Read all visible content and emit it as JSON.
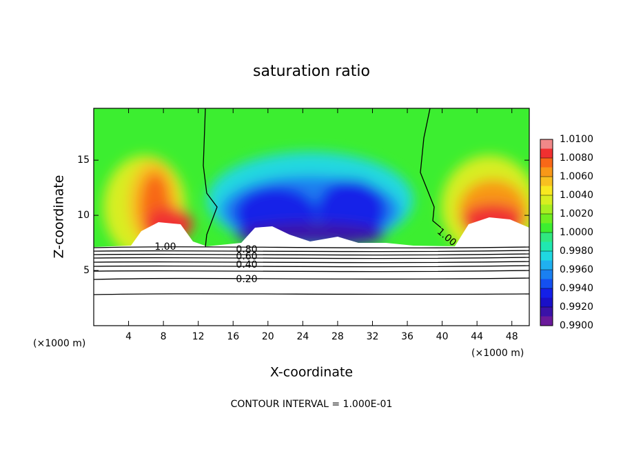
{
  "chart_data": {
    "type": "contour",
    "title": "saturation ratio",
    "x_label": "X-coordinate",
    "y_label": "Z-coordinate",
    "x_unit": "(×1000 m)",
    "footer": "CONTOUR INTERVAL = 1.000E-01",
    "xlim": [
      0,
      50
    ],
    "xticks": [
      4,
      8,
      12,
      16,
      20,
      24,
      28,
      32,
      36,
      40,
      44,
      48
    ],
    "ylim": [
      0,
      19.7
    ],
    "yticks": [
      5,
      10,
      15
    ],
    "contour_labels": [
      "1.00",
      "0.80",
      "0.60",
      "0.40",
      "0.20",
      "1.00"
    ],
    "colorbar": {
      "range": [
        0.99,
        1.01
      ],
      "ticks": [
        {
          "value": 1.01,
          "label": "1.0100"
        },
        {
          "value": 1.008,
          "label": "1.0080"
        },
        {
          "value": 1.006,
          "label": "1.0060"
        },
        {
          "value": 1.004,
          "label": "1.0040"
        },
        {
          "value": 1.002,
          "label": "1.0020"
        },
        {
          "value": 1.0,
          "label": "1.0000"
        },
        {
          "value": 0.998,
          "label": "0.9980"
        },
        {
          "value": 0.996,
          "label": "0.9960"
        },
        {
          "value": 0.994,
          "label": "0.9940"
        },
        {
          "value": 0.992,
          "label": "0.9920"
        },
        {
          "value": 0.99,
          "label": "0.9900"
        }
      ],
      "colors": [
        "#6a1a9a",
        "#3a12a8",
        "#1a10c8",
        "#1420e8",
        "#1450f0",
        "#1a80f0",
        "#20b0f0",
        "#20d8e0",
        "#20e8b0",
        "#30e880",
        "#3cee30",
        "#70ee20",
        "#a8ee20",
        "#d8ee20",
        "#f8e820",
        "#f8c020",
        "#f89818",
        "#f86818",
        "#f03030",
        "#f08888"
      ]
    }
  }
}
